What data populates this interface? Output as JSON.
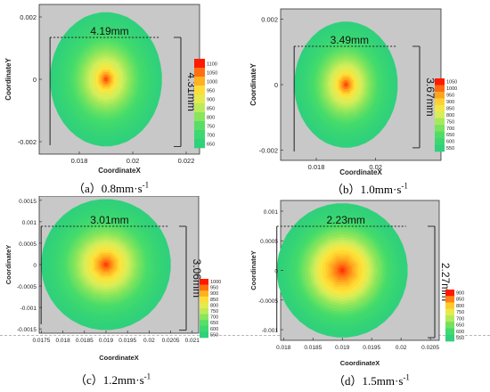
{
  "chart_data": [
    {
      "type": "heatmap",
      "caption_prefix": "（a）",
      "caption_value": "0.8mm·s",
      "caption_exp": "-1",
      "xlabel": "CoordinateX",
      "ylabel": "CoordinateY",
      "xlim": [
        0.0165,
        0.0225
      ],
      "ylim": [
        -0.0024,
        0.0024
      ],
      "xticks": [
        "0.018",
        "0.02",
        "0.022"
      ],
      "xtick_values": [
        0.018,
        0.02,
        0.022
      ],
      "yticks": [
        "0.002",
        "0",
        "-0.002"
      ],
      "ytick_values": [
        0.002,
        0,
        -0.002
      ],
      "center": [
        0.019,
        0.0
      ],
      "width_label": "4.19mm",
      "height_label": "4.31mm",
      "legend_levels": [
        "1100",
        "1050",
        "1000",
        "950",
        "900",
        "850",
        "800",
        "750",
        "700",
        "650"
      ],
      "value_range": [
        650,
        1100
      ],
      "hot_radius_frac": 0.2
    },
    {
      "type": "heatmap",
      "caption_prefix": "（b）",
      "caption_value": "1.0mm·s",
      "caption_exp": "-1",
      "xlabel": "CoordinateX",
      "ylabel": "CoordinateY",
      "xlim": [
        0.0168,
        0.0222
      ],
      "ylim": [
        -0.0022,
        0.0022
      ],
      "xticks": [
        "0.018",
        "0.02"
      ],
      "xtick_values": [
        0.018,
        0.02
      ],
      "yticks": [
        "0.002",
        "0",
        "-0.002"
      ],
      "ytick_values": [
        0.0019,
        0,
        -0.0019
      ],
      "center": [
        0.019,
        0.0
      ],
      "width_label": "3.49mm",
      "height_label": "3.67mm",
      "legend_levels": [
        "1050",
        "1000",
        "950",
        "900",
        "850",
        "800",
        "750",
        "700",
        "650",
        "600",
        "550"
      ],
      "value_range": [
        550,
        1050
      ],
      "hot_radius_frac": 0.22
    },
    {
      "type": "heatmap",
      "caption_prefix": "（c）",
      "caption_value": "1.2mm·s",
      "caption_exp": "-1",
      "xlabel": "CoordinateX",
      "ylabel": "CoordinateY",
      "xlim": [
        0.01745,
        0.02115
      ],
      "ylim": [
        -0.0016,
        0.0016
      ],
      "xticks": [
        "0.0175",
        "0.018",
        "0.0185",
        "0.019",
        "0.0195",
        "0.02",
        "0.0205",
        "0.021"
      ],
      "xtick_values": [
        0.0175,
        0.018,
        0.0185,
        0.019,
        0.0195,
        0.02,
        0.0205,
        0.021
      ],
      "yticks": [
        "0.0015",
        "0.001",
        "0.0005",
        "0",
        "-0.0005",
        "-0.001",
        "-0.0015"
      ],
      "ytick_values": [
        0.0015,
        0.001,
        0.0005,
        0,
        -0.0005,
        -0.001,
        -0.0015
      ],
      "center": [
        0.019,
        0.0
      ],
      "width_label": "3.01mm",
      "height_label": "3.06mm",
      "legend_levels": [
        "1000",
        "950",
        "900",
        "850",
        "800",
        "750",
        "700",
        "650",
        "600",
        "550"
      ],
      "value_range": [
        550,
        1000
      ],
      "hot_radius_frac": 0.27
    },
    {
      "type": "heatmap",
      "caption_prefix": "（d）",
      "caption_value": "1.5mm·s",
      "caption_exp": "-1",
      "xlabel": "CoordinateX",
      "ylabel": "CoordinateY",
      "xlim": [
        0.01795,
        0.02065
      ],
      "ylim": [
        -0.00118,
        0.00118
      ],
      "xticks": [
        "0.018",
        "0.0185",
        "0.019",
        "0.0195",
        "0.02",
        "0.0205"
      ],
      "xtick_values": [
        0.018,
        0.0185,
        0.019,
        0.0195,
        0.02,
        0.0205
      ],
      "yticks": [
        "0.001",
        "0.0005",
        "0",
        "-0.0005",
        "-0.001"
      ],
      "ytick_values": [
        0.001,
        0.0005,
        0,
        -0.0005,
        -0.001
      ],
      "center": [
        0.019,
        0.0
      ],
      "width_label": "2.23mm",
      "height_label": "2.27mm",
      "legend_levels": [
        "900",
        "850",
        "800",
        "750",
        "700",
        "650",
        "600",
        "550"
      ],
      "value_range": [
        550,
        900
      ],
      "hot_radius_frac": 0.36
    }
  ],
  "colors": {
    "background": "#c8c8c8",
    "outer": "#2fd17a",
    "mid": "#b9e85a",
    "hot": "#ff2a00"
  }
}
